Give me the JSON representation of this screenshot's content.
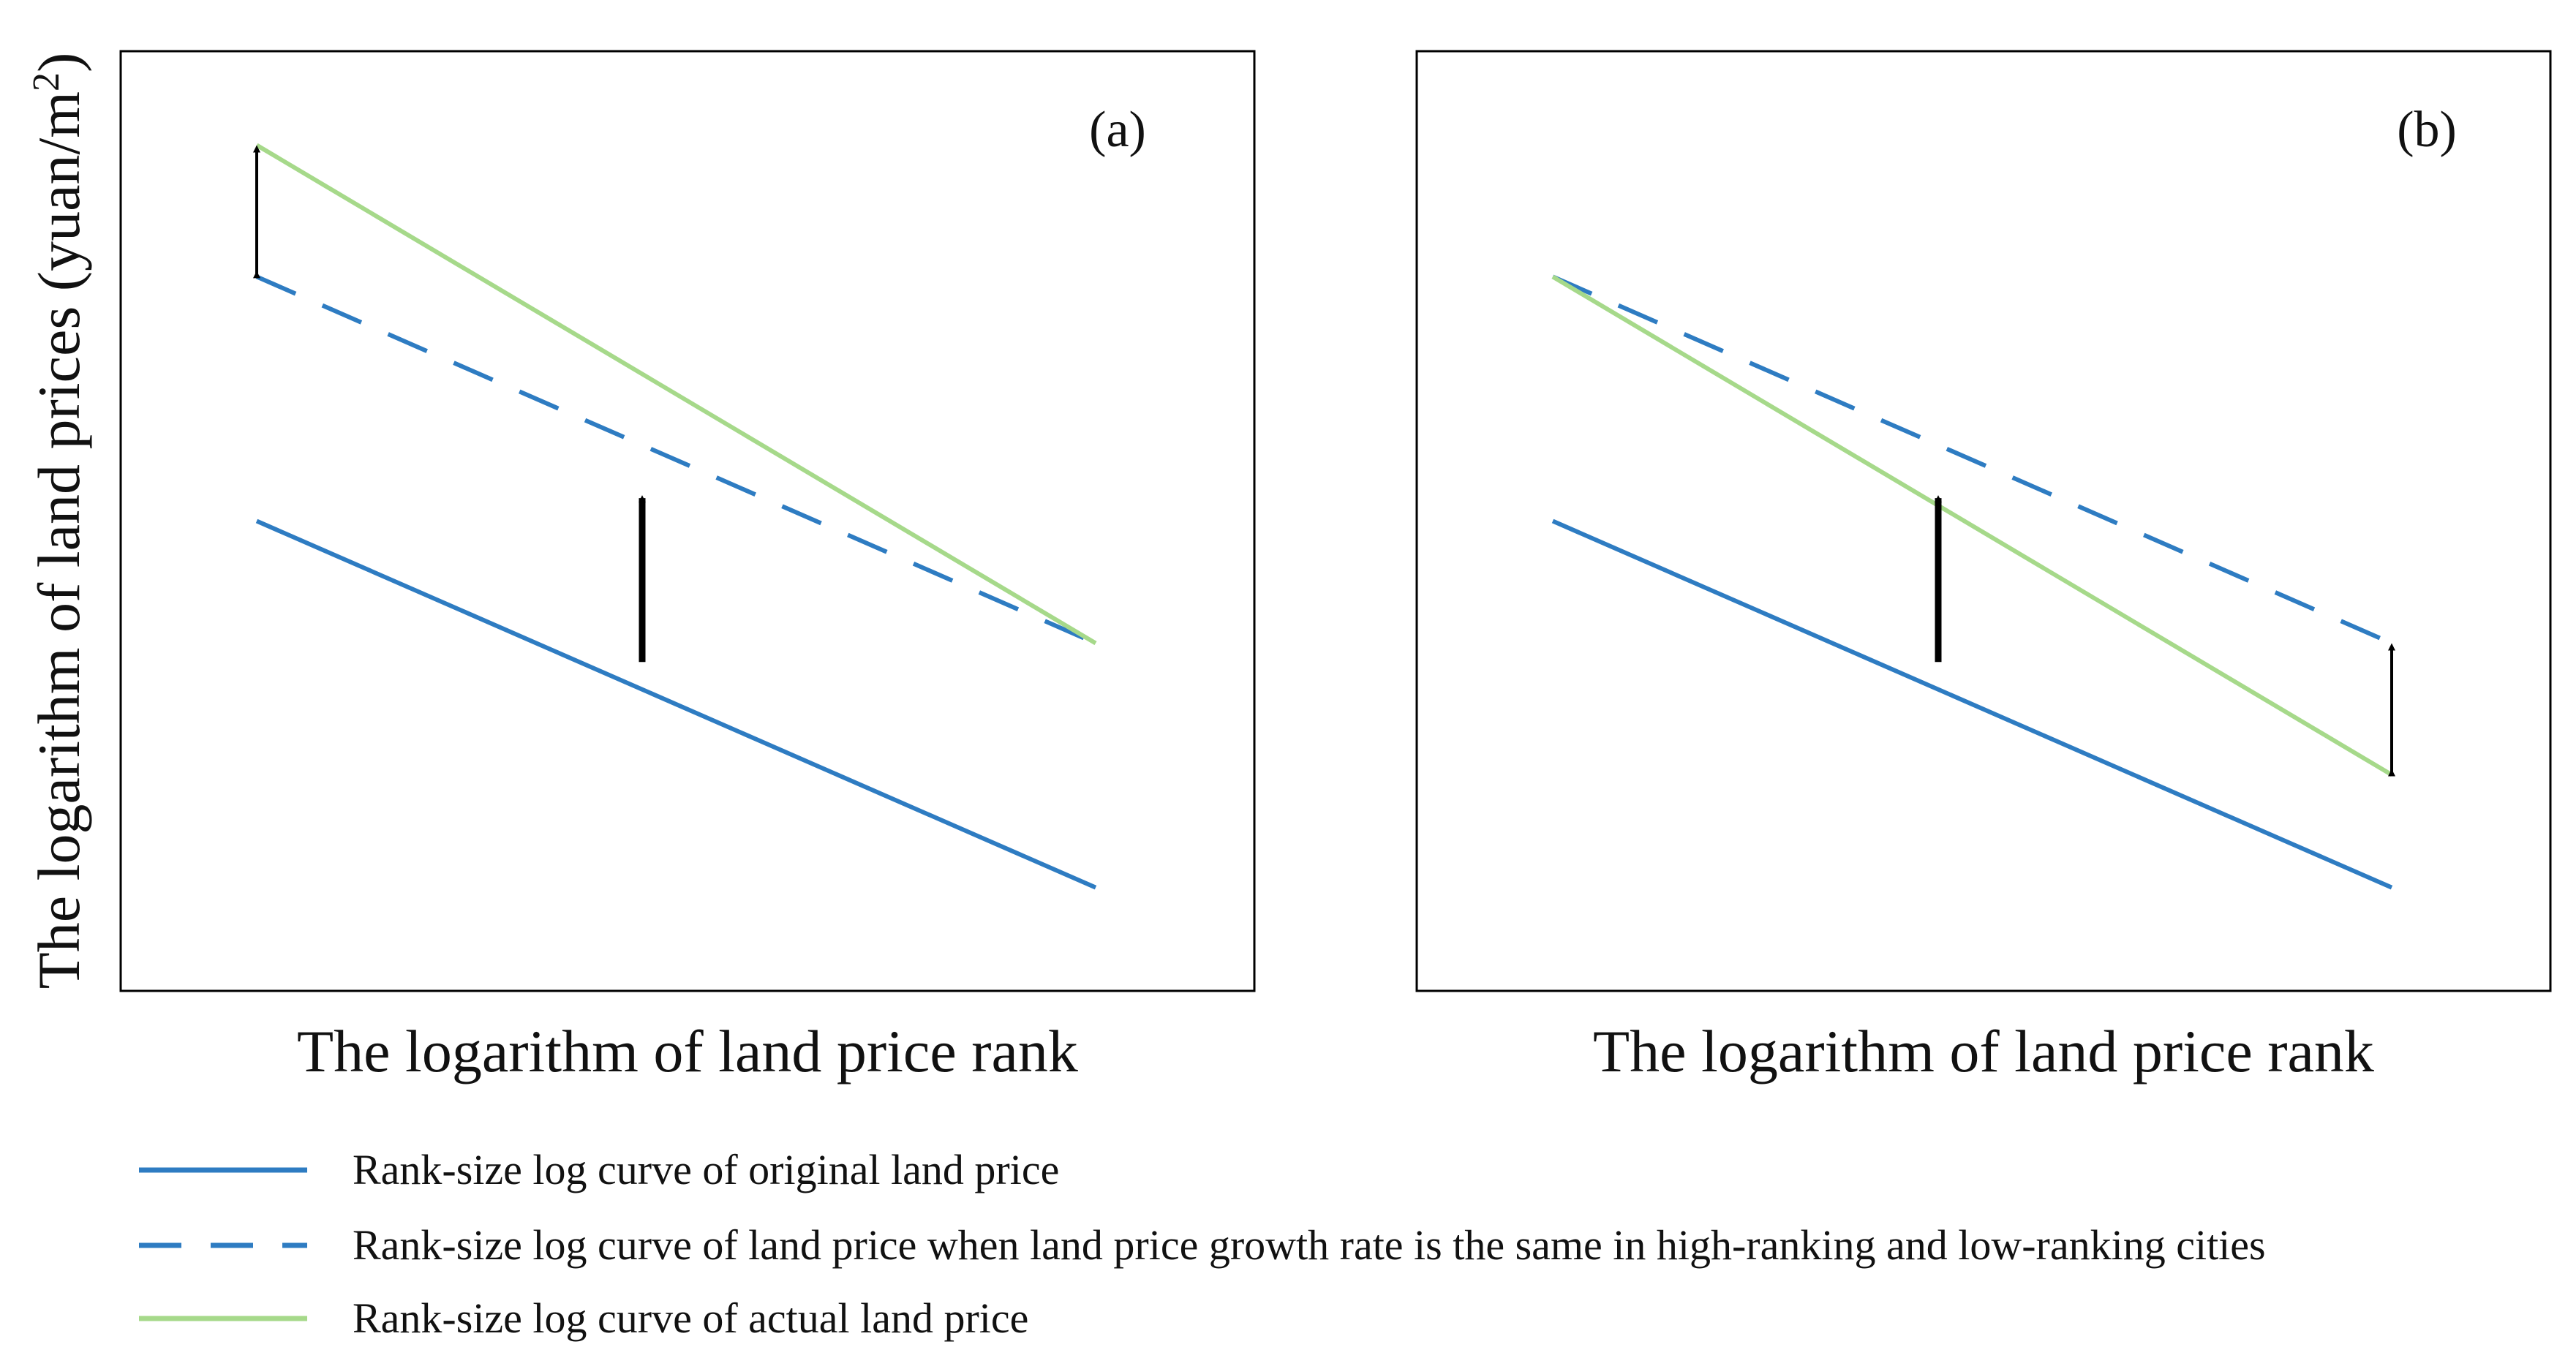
{
  "colors": {
    "original": "#2E7CC2",
    "same_growth": "#2E7CC2",
    "actual": "#A6D98A",
    "arrow": "#000000",
    "axes": "#000000"
  },
  "chart_data": [
    {
      "type": "line",
      "panel_label": "(a)",
      "xlabel": "The logarithm of land price rank",
      "ylabel": "The logarithm of land prices (yuan/m",
      "ylabel_superscript": "2",
      "ylabel_suffix": ")",
      "xlim": [
        0,
        10
      ],
      "ylim": [
        0,
        10
      ],
      "ticks": false,
      "series": [
        {
          "name": "Rank-size log curve of original land price",
          "style": "solid",
          "x": [
            1.2,
            8.6
          ],
          "y": [
            5.0,
            1.1
          ]
        },
        {
          "name": "Rank-size log curve of land price when land price growth rate is the same in high-ranking and low-ranking cities",
          "style": "dashed",
          "x": [
            1.2,
            8.6
          ],
          "y": [
            7.6,
            3.7
          ]
        },
        {
          "name": "Rank-size log curve of actual land price",
          "style": "solid",
          "x": [
            1.2,
            8.6
          ],
          "y": [
            9.0,
            3.7
          ]
        }
      ],
      "annotations": [
        {
          "kind": "arrow-up",
          "x": 4.6,
          "y_from": 3.5,
          "y_to": 5.4
        },
        {
          "kind": "double-arrow",
          "x": 1.2,
          "y_from": 7.6,
          "y_to": 9.0
        }
      ]
    },
    {
      "type": "line",
      "panel_label": "(b)",
      "xlabel": "The logarithm of land price rank",
      "xlim": [
        0,
        10
      ],
      "ylim": [
        0,
        10
      ],
      "ticks": false,
      "series": [
        {
          "name": "Rank-size log curve of original land price",
          "style": "solid",
          "x": [
            1.2,
            8.6
          ],
          "y": [
            5.0,
            1.1
          ]
        },
        {
          "name": "Rank-size log curve of land price when land price growth rate is the same in high-ranking and low-ranking cities",
          "style": "dashed",
          "x": [
            1.2,
            8.6
          ],
          "y": [
            7.6,
            3.7
          ]
        },
        {
          "name": "Rank-size log curve of actual land price",
          "style": "solid",
          "x": [
            1.2,
            8.6
          ],
          "y": [
            7.6,
            2.3
          ]
        }
      ],
      "annotations": [
        {
          "kind": "arrow-up",
          "x": 4.6,
          "y_from": 3.5,
          "y_to": 5.4
        },
        {
          "kind": "double-arrow",
          "x": 8.6,
          "y_from": 2.3,
          "y_to": 3.7
        }
      ]
    }
  ],
  "legend": {
    "position": "bottom",
    "items": [
      {
        "label": "Rank-size log curve of original land price",
        "style": "solid",
        "color": "#2E7CC2"
      },
      {
        "label": "Rank-size log curve of land price when land price growth rate is the same in high-ranking and low-ranking cities",
        "style": "dashed",
        "color": "#2E7CC2"
      },
      {
        "label": "Rank-size log curve of actual land price",
        "style": "solid",
        "color": "#A6D98A"
      }
    ]
  }
}
